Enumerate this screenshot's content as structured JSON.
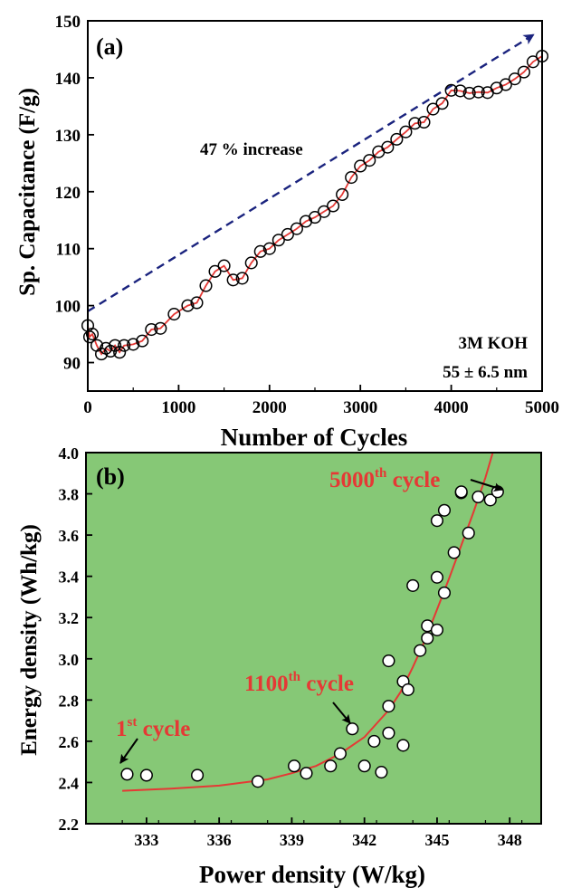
{
  "chart_data": [
    {
      "type": "line",
      "panel_label": "(a)",
      "xlabel": "Number of Cycles",
      "ylabel": "Sp. Capacitance (F/g)",
      "xlim": [
        0,
        5000
      ],
      "ylim": [
        85,
        150
      ],
      "xticks": [
        0,
        1000,
        2000,
        3000,
        4000,
        5000
      ],
      "yticks": [
        90,
        100,
        110,
        120,
        130,
        140,
        150
      ],
      "annotations": {
        "increase": "47 % increase",
        "electrolyte": "3M KOH",
        "size": "55 ± 6.5 nm"
      },
      "trend_arrow": {
        "from": [
          0,
          99
        ],
        "to": [
          4900,
          147.5
        ]
      },
      "series": [
        {
          "marker": "circle",
          "line_color": "#e53935",
          "x": [
            0,
            20,
            50,
            100,
            150,
            200,
            250,
            300,
            350,
            400,
            500,
            600,
            700,
            800,
            950,
            1100,
            1200,
            1300,
            1400,
            1500,
            1600,
            1700,
            1800,
            1900,
            2000,
            2100,
            2200,
            2300,
            2400,
            2500,
            2600,
            2700,
            2800,
            2900,
            3000,
            3100,
            3200,
            3300,
            3400,
            3500,
            3600,
            3700,
            3800,
            3900,
            4000,
            4100,
            4200,
            4300,
            4400,
            4500,
            4600,
            4700,
            4800,
            4900,
            5000
          ],
          "y": [
            96.5,
            94.5,
            95,
            93,
            91.5,
            92.5,
            92,
            93,
            91.8,
            93,
            93.2,
            93.8,
            95.8,
            96,
            98.5,
            100,
            100.5,
            103.5,
            106,
            107,
            104.5,
            104.8,
            107.5,
            109.5,
            110,
            111.5,
            112.5,
            113.5,
            114.8,
            115.5,
            116.5,
            117.5,
            119.5,
            122.5,
            124.5,
            125.5,
            127,
            127.8,
            129.2,
            130.5,
            132,
            132.2,
            134.5,
            135.5,
            137.8,
            137.7,
            137.3,
            137.5,
            137.4,
            138.2,
            138.8,
            139.8,
            141,
            142.8,
            143.8
          ]
        }
      ]
    },
    {
      "type": "scatter",
      "panel_label": "(b)",
      "xlabel": "Power density (W/kg)",
      "ylabel": "Energy density (Wh/kg)",
      "xlim": [
        330.5,
        349.3
      ],
      "ylim": [
        2.2,
        4.0
      ],
      "xticks": [
        333,
        336,
        339,
        342,
        345,
        348
      ],
      "yticks": [
        2.2,
        2.4,
        2.6,
        2.8,
        3.0,
        3.2,
        3.4,
        3.6,
        3.8,
        4.0
      ],
      "background_color": "#86c876",
      "fit_line_color": "#e53935",
      "annotations": {
        "first": {
          "base": "1",
          "sup": "st",
          "text": " cycle"
        },
        "mid": {
          "base": "1100",
          "sup": "th",
          "text": " cycle"
        },
        "last": {
          "base": "5000",
          "sup": "th",
          "text": " cycle"
        }
      },
      "series": [
        {
          "marker": "circle",
          "x": [
            332.2,
            333.0,
            335.1,
            337.6,
            339.1,
            339.6,
            340.6,
            341.0,
            341.5,
            342.0,
            342.4,
            342.7,
            343.0,
            343.0,
            343.0,
            343.6,
            343.6,
            343.8,
            344.0,
            344.3,
            344.6,
            344.6,
            345.0,
            345.0,
            345.0,
            345.3,
            345.3,
            345.7,
            346.0,
            346.0,
            346.3,
            346.7,
            347.2,
            347.5
          ],
          "y": [
            2.44,
            2.435,
            2.435,
            2.405,
            2.48,
            2.445,
            2.48,
            2.54,
            2.66,
            2.48,
            2.6,
            2.45,
            2.64,
            2.77,
            2.99,
            2.89,
            2.58,
            2.85,
            3.355,
            3.04,
            3.16,
            3.1,
            3.14,
            3.395,
            3.67,
            3.32,
            3.72,
            3.515,
            3.805,
            3.81,
            3.61,
            3.785,
            3.77,
            3.81
          ]
        }
      ],
      "fit_curve": {
        "x": [
          332,
          334,
          336,
          338,
          339,
          340,
          341,
          342,
          343,
          343.5,
          344,
          344.5,
          345,
          345.5,
          346,
          346.5,
          347,
          347.3
        ],
        "y": [
          2.36,
          2.37,
          2.385,
          2.415,
          2.445,
          2.48,
          2.54,
          2.62,
          2.75,
          2.84,
          2.96,
          3.09,
          3.24,
          3.39,
          3.55,
          3.71,
          3.88,
          4.0
        ]
      }
    }
  ]
}
